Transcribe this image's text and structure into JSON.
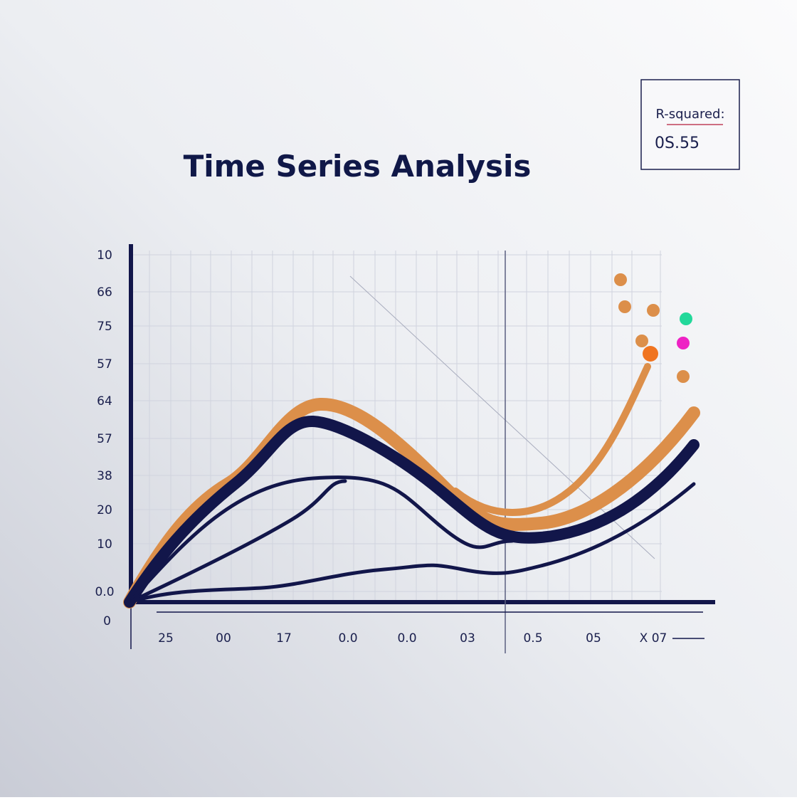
{
  "title": "Time Series Analysis",
  "stat_box": {
    "label": "R-squared:",
    "value": "0S.55"
  },
  "y_axis_labels": [
    "10",
    "66",
    "75",
    "57",
    "64",
    "57",
    "38",
    "20",
    "10",
    "0.0",
    "0"
  ],
  "x_axis_labels": [
    "25",
    "00",
    "17",
    "0.0",
    "0.0",
    "03",
    "0.5",
    "05",
    "X 07"
  ]
}
